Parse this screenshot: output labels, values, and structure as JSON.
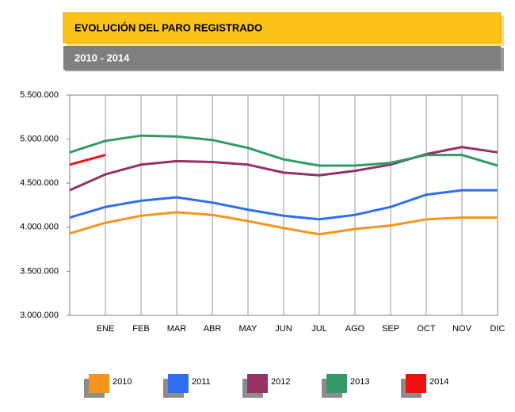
{
  "chart_data": {
    "type": "line",
    "title": "EVOLUCIÓN DEL PARO REGISTRADO",
    "subtitle": "2010 - 2014",
    "categories": [
      null,
      "ENE",
      "FEB",
      "MAR",
      "ABR",
      "MAY",
      "JUN",
      "JUL",
      "AGO",
      "SEP",
      "OCT",
      "NOV",
      "DIC"
    ],
    "series": [
      {
        "name": "2010",
        "color": "#f7941d",
        "values": [
          3930000,
          4050000,
          4130000,
          4170000,
          4140000,
          4070000,
          3990000,
          3920000,
          3980000,
          4020000,
          4090000,
          4110000,
          4110000
        ]
      },
      {
        "name": "2011",
        "color": "#2f6fef",
        "values": [
          4110000,
          4230000,
          4300000,
          4340000,
          4280000,
          4200000,
          4130000,
          4090000,
          4140000,
          4230000,
          4370000,
          4420000,
          4420000
        ]
      },
      {
        "name": "2012",
        "color": "#953163",
        "values": [
          4420000,
          4600000,
          4710000,
          4750000,
          4740000,
          4710000,
          4620000,
          4590000,
          4640000,
          4710000,
          4830000,
          4910000,
          4850000
        ]
      },
      {
        "name": "2013",
        "color": "#339966",
        "values": [
          4850000,
          4980000,
          5040000,
          5030000,
          4990000,
          4900000,
          4770000,
          4700000,
          4700000,
          4730000,
          4820000,
          4820000,
          4700000
        ]
      },
      {
        "name": "2014",
        "color": "#ee1111",
        "values": [
          4710000,
          4820000,
          null,
          null,
          null,
          null,
          null,
          null,
          null,
          null,
          null,
          null,
          null
        ]
      }
    ],
    "ylim": [
      3000000,
      5500000
    ],
    "yticks": [
      {
        "value": 3000000,
        "label": "3.000.000"
      },
      {
        "value": 3500000,
        "label": "3.500.000"
      },
      {
        "value": 4000000,
        "label": "4.000.000"
      },
      {
        "value": 4500000,
        "label": "4.500.000"
      },
      {
        "value": 5000000,
        "label": "5.000.000"
      },
      {
        "value": 5500000,
        "label": "5.500.000"
      }
    ],
    "grid": "x",
    "legend": "bottom"
  }
}
